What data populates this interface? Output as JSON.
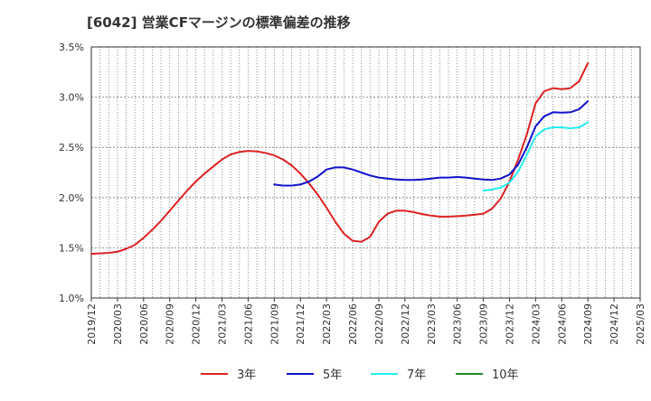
{
  "chart_data": {
    "type": "line",
    "title": "[6042]  営業CFマージンの標準偏差の推移",
    "xlabel": "",
    "ylabel": "",
    "x_ticks": [
      "2019/12",
      "2020/03",
      "2020/06",
      "2020/09",
      "2020/12",
      "2021/03",
      "2021/06",
      "2021/09",
      "2021/12",
      "2022/03",
      "2022/06",
      "2022/09",
      "2022/12",
      "2023/03",
      "2023/06",
      "2023/09",
      "2023/12",
      "2024/03",
      "2024/06",
      "2024/09",
      "2024/12",
      "2025/03"
    ],
    "y_ticks": [
      "1.0%",
      "1.5%",
      "2.0%",
      "2.5%",
      "3.0%",
      "3.5%"
    ],
    "ylim": [
      1.0,
      3.5
    ],
    "grid": true,
    "legend_position": "bottom",
    "series": [
      {
        "name": "3年",
        "color": "#dd2222",
        "points": [
          [
            "2019/12",
            1.44
          ],
          [
            "2020/01",
            1.445
          ],
          [
            "2020/02",
            1.45
          ],
          [
            "2020/03",
            1.46
          ],
          [
            "2020/04",
            1.49
          ],
          [
            "2020/05",
            1.53
          ],
          [
            "2020/06",
            1.6
          ],
          [
            "2020/07",
            1.68
          ],
          [
            "2020/08",
            1.77
          ],
          [
            "2020/09",
            1.87
          ],
          [
            "2020/10",
            1.97
          ],
          [
            "2020/11",
            2.07
          ],
          [
            "2020/12",
            2.16
          ],
          [
            "2021/01",
            2.24
          ],
          [
            "2021/02",
            2.31
          ],
          [
            "2021/03",
            2.38
          ],
          [
            "2021/04",
            2.43
          ],
          [
            "2021/05",
            2.455
          ],
          [
            "2021/06",
            2.465
          ],
          [
            "2021/07",
            2.46
          ],
          [
            "2021/08",
            2.445
          ],
          [
            "2021/09",
            2.42
          ],
          [
            "2021/10",
            2.38
          ],
          [
            "2021/11",
            2.32
          ],
          [
            "2021/12",
            2.24
          ],
          [
            "2022/01",
            2.14
          ],
          [
            "2022/02",
            2.03
          ],
          [
            "2022/03",
            1.9
          ],
          [
            "2022/04",
            1.76
          ],
          [
            "2022/05",
            1.64
          ],
          [
            "2022/06",
            1.57
          ],
          [
            "2022/07",
            1.56
          ],
          [
            "2022/08",
            1.61
          ],
          [
            "2022/09",
            1.76
          ],
          [
            "2022/10",
            1.84
          ],
          [
            "2022/11",
            1.87
          ],
          [
            "2022/12",
            1.87
          ],
          [
            "2023/01",
            1.855
          ],
          [
            "2023/02",
            1.835
          ],
          [
            "2023/03",
            1.82
          ],
          [
            "2023/04",
            1.81
          ],
          [
            "2023/05",
            1.81
          ],
          [
            "2023/06",
            1.815
          ],
          [
            "2023/07",
            1.82
          ],
          [
            "2023/08",
            1.83
          ],
          [
            "2023/09",
            1.84
          ],
          [
            "2023/10",
            1.89
          ],
          [
            "2023/11",
            1.99
          ],
          [
            "2023/12",
            2.16
          ],
          [
            "2024/01",
            2.38
          ],
          [
            "2024/02",
            2.63
          ],
          [
            "2024/03",
            2.94
          ],
          [
            "2024/04",
            3.06
          ],
          [
            "2024/05",
            3.09
          ],
          [
            "2024/06",
            3.08
          ],
          [
            "2024/07",
            3.09
          ],
          [
            "2024/08",
            3.16
          ],
          [
            "2024/09",
            3.34
          ]
        ]
      },
      {
        "name": "5年",
        "color": "#1111cc",
        "points": [
          [
            "2021/09",
            2.13
          ],
          [
            "2021/10",
            2.12
          ],
          [
            "2021/11",
            2.12
          ],
          [
            "2021/12",
            2.13
          ],
          [
            "2022/01",
            2.16
          ],
          [
            "2022/02",
            2.21
          ],
          [
            "2022/03",
            2.28
          ],
          [
            "2022/04",
            2.3
          ],
          [
            "2022/05",
            2.3
          ],
          [
            "2022/06",
            2.28
          ],
          [
            "2022/07",
            2.25
          ],
          [
            "2022/08",
            2.22
          ],
          [
            "2022/09",
            2.2
          ],
          [
            "2022/10",
            2.19
          ],
          [
            "2022/11",
            2.18
          ],
          [
            "2022/12",
            2.175
          ],
          [
            "2023/01",
            2.175
          ],
          [
            "2023/02",
            2.18
          ],
          [
            "2023/03",
            2.19
          ],
          [
            "2023/04",
            2.2
          ],
          [
            "2023/05",
            2.2
          ],
          [
            "2023/06",
            2.205
          ],
          [
            "2023/07",
            2.2
          ],
          [
            "2023/08",
            2.19
          ],
          [
            "2023/09",
            2.18
          ],
          [
            "2023/10",
            2.175
          ],
          [
            "2023/11",
            2.19
          ],
          [
            "2023/12",
            2.23
          ],
          [
            "2024/01",
            2.33
          ],
          [
            "2024/02",
            2.5
          ],
          [
            "2024/03",
            2.71
          ],
          [
            "2024/04",
            2.81
          ],
          [
            "2024/05",
            2.85
          ],
          [
            "2024/06",
            2.845
          ],
          [
            "2024/07",
            2.85
          ],
          [
            "2024/08",
            2.88
          ],
          [
            "2024/09",
            2.96
          ]
        ]
      },
      {
        "name": "7年",
        "color": "#22eeee",
        "points": [
          [
            "2023/09",
            2.07
          ],
          [
            "2023/10",
            2.08
          ],
          [
            "2023/11",
            2.1
          ],
          [
            "2023/12",
            2.15
          ],
          [
            "2024/01",
            2.26
          ],
          [
            "2024/02",
            2.43
          ],
          [
            "2024/03",
            2.61
          ],
          [
            "2024/04",
            2.68
          ],
          [
            "2024/05",
            2.7
          ],
          [
            "2024/06",
            2.7
          ],
          [
            "2024/07",
            2.69
          ],
          [
            "2024/08",
            2.7
          ],
          [
            "2024/09",
            2.75
          ]
        ]
      },
      {
        "name": "10年",
        "color": "#228822",
        "points": []
      }
    ]
  }
}
